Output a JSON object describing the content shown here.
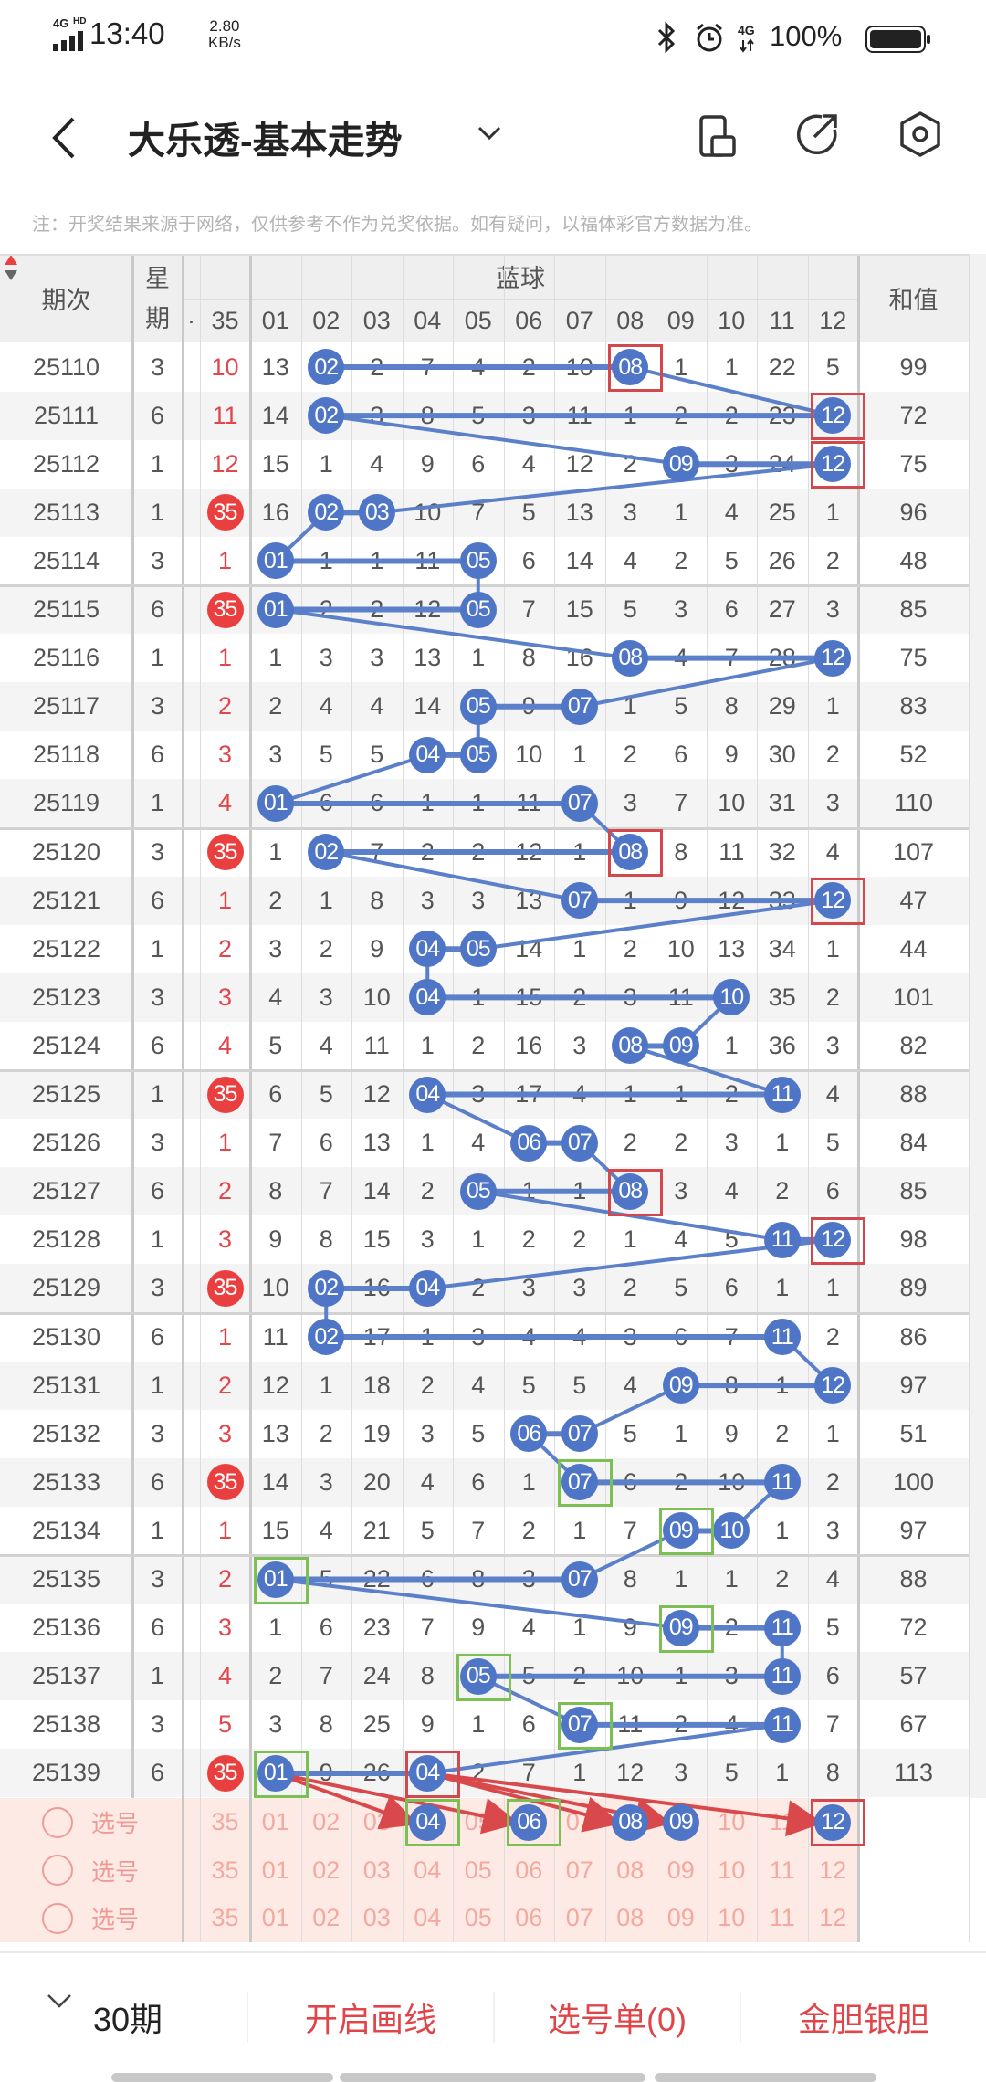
{
  "status_bar": {
    "network": "4G",
    "hd": "HD",
    "time": "13:40",
    "speed_value": "2.80",
    "speed_unit": "KB/s",
    "battery": "100%"
  },
  "header": {
    "title": "大乐透-基本走势"
  },
  "notice": "注：开奖结果来源于网络，仅供参考不作为兑奖依据。如有疑问，以福体彩官方数据为准。",
  "table": {
    "col_period": "期次",
    "col_week_1": "星",
    "col_week_2": "期",
    "col_partial": "·",
    "col_red": "35",
    "group_blue": "蓝球",
    "blue_cols": [
      "01",
      "02",
      "03",
      "04",
      "05",
      "06",
      "07",
      "08",
      "09",
      "10",
      "11",
      "12"
    ],
    "col_sum": "和值"
  },
  "rows": [
    {
      "period": "25110",
      "week": "3",
      "red": "10",
      "cells": [
        "13",
        "02",
        "2",
        "7",
        "4",
        "2",
        "10",
        "08",
        "1",
        "1",
        "22",
        "5"
      ],
      "hits": [
        2,
        8
      ],
      "sum": "99"
    },
    {
      "period": "25111",
      "week": "6",
      "red": "11",
      "cells": [
        "14",
        "02",
        "3",
        "8",
        "5",
        "3",
        "11",
        "1",
        "2",
        "2",
        "23",
        "12"
      ],
      "hits": [
        2,
        12
      ],
      "sum": "72"
    },
    {
      "period": "25112",
      "week": "1",
      "red": "12",
      "cells": [
        "15",
        "1",
        "4",
        "9",
        "6",
        "4",
        "12",
        "2",
        "09",
        "3",
        "24",
        "12"
      ],
      "hits": [
        9,
        12
      ],
      "sum": "75"
    },
    {
      "period": "25113",
      "week": "1",
      "red": "35",
      "red_hit": true,
      "cells": [
        "16",
        "02",
        "03",
        "10",
        "7",
        "5",
        "13",
        "3",
        "1",
        "4",
        "25",
        "1"
      ],
      "hits": [
        2,
        3
      ],
      "sum": "96"
    },
    {
      "period": "25114",
      "week": "3",
      "red": "1",
      "cells": [
        "01",
        "1",
        "1",
        "11",
        "05",
        "6",
        "14",
        "4",
        "2",
        "5",
        "26",
        "2"
      ],
      "hits": [
        1,
        5
      ],
      "sum": "48"
    },
    {
      "period": "25115",
      "week": "6",
      "red": "35",
      "red_hit": true,
      "cells": [
        "01",
        "2",
        "2",
        "12",
        "05",
        "7",
        "15",
        "5",
        "3",
        "6",
        "27",
        "3"
      ],
      "hits": [
        1,
        5
      ],
      "sum": "85"
    },
    {
      "period": "25116",
      "week": "1",
      "red": "1",
      "cells": [
        "1",
        "3",
        "3",
        "13",
        "1",
        "8",
        "16",
        "08",
        "4",
        "7",
        "28",
        "12"
      ],
      "hits": [
        8,
        12
      ],
      "sum": "75"
    },
    {
      "period": "25117",
      "week": "3",
      "red": "2",
      "cells": [
        "2",
        "4",
        "4",
        "14",
        "05",
        "9",
        "07",
        "1",
        "5",
        "8",
        "29",
        "1"
      ],
      "hits": [
        5,
        7
      ],
      "sum": "83"
    },
    {
      "period": "25118",
      "week": "6",
      "red": "3",
      "cells": [
        "3",
        "5",
        "5",
        "04",
        "05",
        "10",
        "1",
        "2",
        "6",
        "9",
        "30",
        "2"
      ],
      "hits": [
        4,
        5
      ],
      "sum": "52"
    },
    {
      "period": "25119",
      "week": "1",
      "red": "4",
      "cells": [
        "01",
        "6",
        "6",
        "1",
        "1",
        "11",
        "07",
        "3",
        "7",
        "10",
        "31",
        "3"
      ],
      "hits": [
        1,
        7
      ],
      "sum": "110"
    },
    {
      "period": "25120",
      "week": "3",
      "red": "35",
      "red_hit": true,
      "cells": [
        "1",
        "02",
        "7",
        "2",
        "2",
        "12",
        "1",
        "08",
        "8",
        "11",
        "32",
        "4"
      ],
      "hits": [
        2,
        8
      ],
      "sum": "107"
    },
    {
      "period": "25121",
      "week": "6",
      "red": "1",
      "cells": [
        "2",
        "1",
        "8",
        "3",
        "3",
        "13",
        "07",
        "1",
        "9",
        "12",
        "33",
        "12"
      ],
      "hits": [
        7,
        12
      ],
      "sum": "47"
    },
    {
      "period": "25122",
      "week": "1",
      "red": "2",
      "cells": [
        "3",
        "2",
        "9",
        "04",
        "05",
        "14",
        "1",
        "2",
        "10",
        "13",
        "34",
        "1"
      ],
      "hits": [
        4,
        5
      ],
      "sum": "44"
    },
    {
      "period": "25123",
      "week": "3",
      "red": "3",
      "cells": [
        "4",
        "3",
        "10",
        "04",
        "1",
        "15",
        "2",
        "3",
        "11",
        "10",
        "35",
        "2"
      ],
      "hits": [
        4,
        10
      ],
      "sum": "101"
    },
    {
      "period": "25124",
      "week": "6",
      "red": "4",
      "cells": [
        "5",
        "4",
        "11",
        "1",
        "2",
        "16",
        "3",
        "08",
        "09",
        "1",
        "36",
        "3"
      ],
      "hits": [
        8,
        9
      ],
      "sum": "82"
    },
    {
      "period": "25125",
      "week": "1",
      "red": "35",
      "red_hit": true,
      "cells": [
        "6",
        "5",
        "12",
        "04",
        "3",
        "17",
        "4",
        "1",
        "1",
        "2",
        "11",
        "4"
      ],
      "hits": [
        4,
        11
      ],
      "sum": "88"
    },
    {
      "period": "25126",
      "week": "3",
      "red": "1",
      "cells": [
        "7",
        "6",
        "13",
        "1",
        "4",
        "06",
        "07",
        "2",
        "2",
        "3",
        "1",
        "5"
      ],
      "hits": [
        6,
        7
      ],
      "sum": "84"
    },
    {
      "period": "25127",
      "week": "6",
      "red": "2",
      "cells": [
        "8",
        "7",
        "14",
        "2",
        "05",
        "1",
        "1",
        "08",
        "3",
        "4",
        "2",
        "6"
      ],
      "hits": [
        5,
        8
      ],
      "sum": "85"
    },
    {
      "period": "25128",
      "week": "1",
      "red": "3",
      "cells": [
        "9",
        "8",
        "15",
        "3",
        "1",
        "2",
        "2",
        "1",
        "4",
        "5",
        "11",
        "12"
      ],
      "hits": [
        11,
        12
      ],
      "sum": "98"
    },
    {
      "period": "25129",
      "week": "3",
      "red": "35",
      "red_hit": true,
      "cells": [
        "10",
        "02",
        "16",
        "04",
        "2",
        "3",
        "3",
        "2",
        "5",
        "6",
        "1",
        "1"
      ],
      "hits": [
        2,
        4
      ],
      "sum": "89"
    },
    {
      "period": "25130",
      "week": "6",
      "red": "1",
      "cells": [
        "11",
        "02",
        "17",
        "1",
        "3",
        "4",
        "4",
        "3",
        "6",
        "7",
        "11",
        "2"
      ],
      "hits": [
        2,
        11
      ],
      "sum": "86"
    },
    {
      "period": "25131",
      "week": "1",
      "red": "2",
      "cells": [
        "12",
        "1",
        "18",
        "2",
        "4",
        "5",
        "5",
        "4",
        "09",
        "8",
        "1",
        "12"
      ],
      "hits": [
        9,
        12
      ],
      "sum": "97"
    },
    {
      "period": "25132",
      "week": "3",
      "red": "3",
      "cells": [
        "13",
        "2",
        "19",
        "3",
        "5",
        "06",
        "07",
        "5",
        "1",
        "9",
        "2",
        "1"
      ],
      "hits": [
        6,
        7
      ],
      "sum": "51"
    },
    {
      "period": "25133",
      "week": "6",
      "red": "35",
      "red_hit": true,
      "cells": [
        "14",
        "3",
        "20",
        "4",
        "6",
        "1",
        "07",
        "6",
        "2",
        "10",
        "11",
        "2"
      ],
      "hits": [
        7,
        11
      ],
      "sum": "100"
    },
    {
      "period": "25134",
      "week": "1",
      "red": "1",
      "cells": [
        "15",
        "4",
        "21",
        "5",
        "7",
        "2",
        "1",
        "7",
        "09",
        "10",
        "1",
        "3"
      ],
      "hits": [
        9,
        10
      ],
      "sum": "97"
    },
    {
      "period": "25135",
      "week": "3",
      "red": "2",
      "cells": [
        "01",
        "5",
        "22",
        "6",
        "8",
        "3",
        "07",
        "8",
        "1",
        "1",
        "2",
        "4"
      ],
      "hits": [
        1,
        7
      ],
      "sum": "88"
    },
    {
      "period": "25136",
      "week": "6",
      "red": "3",
      "cells": [
        "1",
        "6",
        "23",
        "7",
        "9",
        "4",
        "1",
        "9",
        "09",
        "2",
        "11",
        "5"
      ],
      "hits": [
        9,
        11
      ],
      "sum": "72"
    },
    {
      "period": "25137",
      "week": "1",
      "red": "4",
      "cells": [
        "2",
        "7",
        "24",
        "8",
        "05",
        "5",
        "2",
        "10",
        "1",
        "3",
        "11",
        "6"
      ],
      "hits": [
        5,
        11
      ],
      "sum": "57"
    },
    {
      "period": "25138",
      "week": "3",
      "red": "5",
      "cells": [
        "3",
        "8",
        "25",
        "9",
        "1",
        "6",
        "07",
        "11",
        "2",
        "4",
        "11",
        "7"
      ],
      "hits": [
        7,
        11
      ],
      "sum": "67"
    },
    {
      "period": "25139",
      "week": "6",
      "red": "35",
      "red_hit": true,
      "cells": [
        "01",
        "9",
        "26",
        "04",
        "2",
        "7",
        "1",
        "12",
        "3",
        "5",
        "1",
        "8"
      ],
      "hits": [
        1,
        4
      ],
      "sum": "113"
    }
  ],
  "red_boxes": [
    {
      "row": 0,
      "col": 8
    },
    {
      "row": 1,
      "col": 12
    },
    {
      "row": 2,
      "col": 12
    },
    {
      "row": 10,
      "col": 8
    },
    {
      "row": 11,
      "col": 12
    },
    {
      "row": 17,
      "col": 8
    },
    {
      "row": 18,
      "col": 12
    },
    {
      "row": 29,
      "col": 4
    }
  ],
  "green_boxes": [
    {
      "row": 23,
      "col": 7
    },
    {
      "row": 24,
      "col": 9
    },
    {
      "row": 25,
      "col": 1
    },
    {
      "row": 26,
      "col": 9
    },
    {
      "row": 27,
      "col": 5
    },
    {
      "row": 28,
      "col": 7
    },
    {
      "row": 29,
      "col": 1
    }
  ],
  "selection": {
    "label": "选号",
    "red": "35",
    "numbers": [
      "01",
      "02",
      "03",
      "04",
      "05",
      "06",
      "07",
      "08",
      "09",
      "10",
      "11",
      "12"
    ],
    "row_count": 3,
    "picked": [
      4,
      6,
      8,
      9,
      12
    ],
    "picked_green": [
      4,
      6
    ],
    "picked_red": [
      12
    ]
  },
  "arrows": [
    {
      "from": 1,
      "to": 4
    },
    {
      "from": 1,
      "to": 6
    },
    {
      "from": 4,
      "to": 8
    },
    {
      "from": 4,
      "to": 9
    },
    {
      "from": 4,
      "to": 12
    }
  ],
  "footer": {
    "period_select": "30期",
    "draw_lines": "开启画线",
    "pick_list": "选号单(0)",
    "gold_silver": "金胆银胆"
  },
  "colors": {
    "blue_ball": "#4f75c6",
    "red": "#e0464b",
    "line": "#5b80c9",
    "green_box": "#7cbf52",
    "red_box": "#d2484c",
    "selection_bg": "#fdeae5"
  }
}
